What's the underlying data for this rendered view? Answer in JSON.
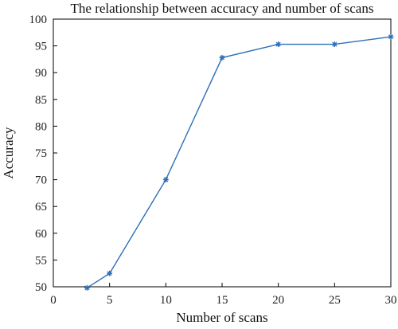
{
  "chart_data": {
    "type": "line",
    "title": "The relationship between accuracy and number of scans",
    "xlabel": "Number of scans",
    "ylabel": "Accuracy",
    "xlim": [
      0,
      30
    ],
    "ylim": [
      50,
      100
    ],
    "xticks": [
      0,
      5,
      10,
      15,
      20,
      25,
      30
    ],
    "yticks": [
      50,
      55,
      60,
      65,
      70,
      75,
      80,
      85,
      90,
      95,
      100
    ],
    "grid": false,
    "legend": "none",
    "series": [
      {
        "marker": "asterisk",
        "color": "#2e6fb8",
        "points": [
          {
            "x": 3,
            "y": 49.8
          },
          {
            "x": 5,
            "y": 52.5
          },
          {
            "x": 10,
            "y": 70
          },
          {
            "x": 15,
            "y": 92.8
          },
          {
            "x": 20,
            "y": 95.3
          },
          {
            "x": 25,
            "y": 95.3
          },
          {
            "x": 30,
            "y": 96.7
          }
        ]
      }
    ]
  }
}
